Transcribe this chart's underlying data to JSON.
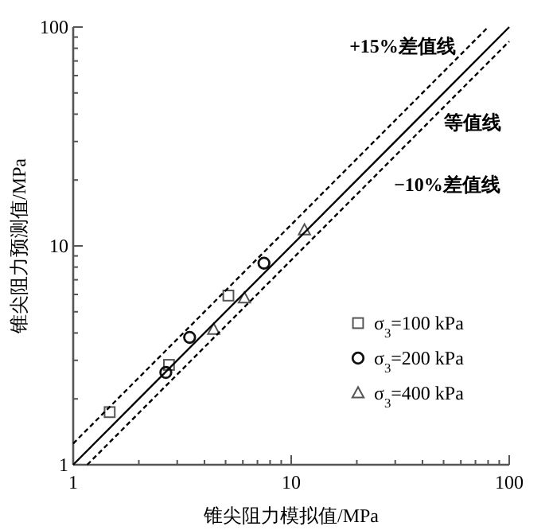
{
  "chart_data": {
    "type": "scatter",
    "xlabel": "锥尖阻力模拟值/MPa",
    "ylabel": "锥尖阻力预测值/MPa",
    "log": "xy",
    "xlim": [
      1,
      100
    ],
    "ylim": [
      1,
      100
    ],
    "xticks": [
      1,
      {
        "value": 2,
        "label": null
      },
      {
        "value": 3,
        "label": null
      },
      {
        "value": 4,
        "label": null
      },
      {
        "value": 5,
        "label": null
      },
      {
        "value": 6,
        "label": null
      },
      {
        "value": 7,
        "label": null
      },
      {
        "value": 8,
        "label": null
      },
      {
        "value": 9,
        "label": null
      },
      10,
      {
        "value": 20,
        "label": null
      },
      {
        "value": 30,
        "label": null
      },
      {
        "value": 40,
        "label": null
      },
      {
        "value": 50,
        "label": null
      },
      {
        "value": 60,
        "label": null
      },
      {
        "value": 70,
        "label": null
      },
      {
        "value": 80,
        "label": null
      },
      {
        "value": 90,
        "label": null
      },
      100
    ],
    "yticks": [
      1,
      {
        "value": 2,
        "label": null
      },
      {
        "value": 3,
        "label": null
      },
      {
        "value": 4,
        "label": null
      },
      {
        "value": 5,
        "label": null
      },
      {
        "value": 6,
        "label": null
      },
      {
        "value": 7,
        "label": null
      },
      {
        "value": 8,
        "label": null
      },
      {
        "value": 9,
        "label": null
      },
      10,
      {
        "value": 20,
        "label": null
      },
      {
        "value": 30,
        "label": null
      },
      {
        "value": 40,
        "label": null
      },
      {
        "value": 50,
        "label": null
      },
      {
        "value": 60,
        "label": null
      },
      {
        "value": 70,
        "label": null
      },
      {
        "value": 80,
        "label": null
      },
      {
        "value": 90,
        "label": null
      },
      100
    ],
    "legend": "bottom right",
    "annotations": [
      "+15%差值线",
      "等值线",
      "−10%差值线"
    ],
    "series": [
      {
        "name": "σ$_{3}$=100 kPa",
        "color": "#555555",
        "marker": "square",
        "x": [
          1.47,
          2.75,
          5.15
        ],
        "values": [
          1.74,
          2.86,
          5.93
        ]
      },
      {
        "name": "σ$_{3}$=200 kPa",
        "color": "#111111",
        "marker": "circle",
        "x": [
          2.66,
          3.42,
          7.5
        ],
        "values": [
          2.64,
          3.82,
          8.34
        ]
      },
      {
        "name": "σ$_{3}$=400 kPa",
        "color": "#555555",
        "marker": "triangle",
        "x": [
          4.41,
          6.1,
          11.5
        ],
        "values": [
          4.15,
          5.77,
          11.8
        ]
      },
      {
        "type": "line",
        "color": "#000000",
        "line_style": "dashed",
        "x": [
          1,
          80
        ],
        "values": [
          1.25,
          100
        ]
      },
      {
        "type": "line",
        "color": "#000000",
        "line_style": "solid",
        "x": [
          1,
          100
        ],
        "values": [
          1,
          100
        ]
      },
      {
        "type": "line",
        "color": "#000000",
        "line_style": "dashed",
        "x": [
          1.16,
          100
        ],
        "values": [
          1,
          86
        ]
      }
    ]
  }
}
